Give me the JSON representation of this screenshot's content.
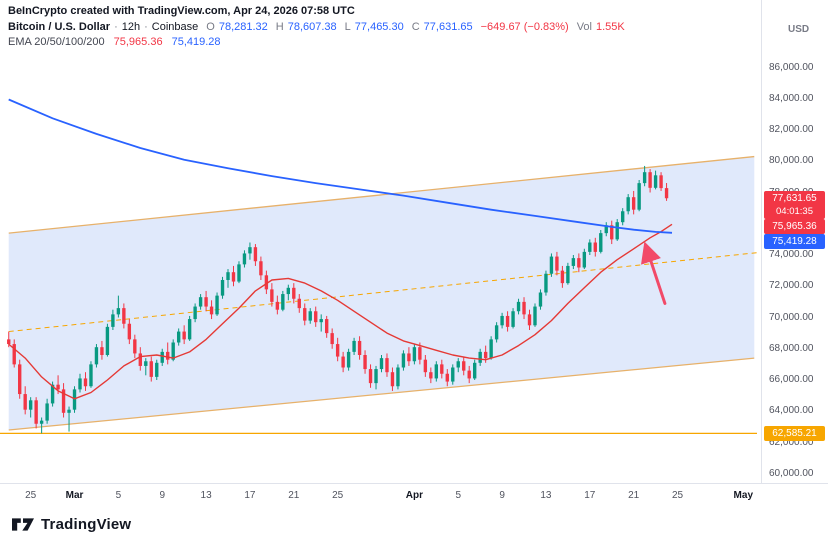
{
  "header": {
    "watermark": "BeInCrypto created with TradingView.com, Apr 24, 2026 07:58 UTC",
    "symbol": {
      "title": "Bitcoin / U.S. Dollar",
      "sep": "·",
      "interval": "12h",
      "exchange": "Coinbase",
      "o_label": "O",
      "o": "78,281.32",
      "h_label": "H",
      "h": "78,607.38",
      "l_label": "L",
      "l": "77,465.30",
      "c_label": "C",
      "c": "77,631.65",
      "change": "−649.67 (−0.83%)",
      "vol_label": "Vol",
      "vol": "1.55K"
    },
    "ema": {
      "label": "EMA 20/50/100/200",
      "value1": "75,965.36",
      "value2": "75,419.28"
    }
  },
  "axis": {
    "currency": "USD",
    "price_ticks": [
      {
        "v": 86000,
        "label": "86,000.00"
      },
      {
        "v": 84000,
        "label": "84,000.00"
      },
      {
        "v": 82000,
        "label": "82,000.00"
      },
      {
        "v": 80000,
        "label": "80,000.00"
      },
      {
        "v": 78000,
        "label": "78,000.00"
      },
      {
        "v": 76000,
        "label": "76,000.00"
      },
      {
        "v": 74000,
        "label": "74,000.00"
      },
      {
        "v": 72000,
        "label": "72,000.00"
      },
      {
        "v": 70000,
        "label": "70,000.00"
      },
      {
        "v": 68000,
        "label": "68,000.00"
      },
      {
        "v": 66000,
        "label": "66,000.00"
      },
      {
        "v": 64000,
        "label": "64,000.00"
      },
      {
        "v": 62000,
        "label": "62,000.00"
      },
      {
        "v": 60000,
        "label": "60,000.00"
      }
    ],
    "badges": [
      {
        "name": "last-price-countdown-badge",
        "label": "77,631.65",
        "sub": "04:01:35",
        "value": 77631.65,
        "bg": "#f23645"
      },
      {
        "name": "ema-fast-value-badge",
        "label": "75,965.36",
        "value": 75965.36,
        "bg": "#f23645"
      },
      {
        "name": "ema-slow-value-badge",
        "label": "75,419.28",
        "value": 75419.28,
        "bg": "#2962ff"
      },
      {
        "name": "horizontal-line-value-badge",
        "label": "62,585.21",
        "value": 62585.21,
        "bg": "#f7a600"
      }
    ],
    "time_labels": [
      {
        "label": "25",
        "slot": 4,
        "major": false
      },
      {
        "label": "Mar",
        "slot": 12,
        "major": true
      },
      {
        "label": "5",
        "slot": 20,
        "major": false
      },
      {
        "label": "9",
        "slot": 28,
        "major": false
      },
      {
        "label": "13",
        "slot": 36,
        "major": false
      },
      {
        "label": "17",
        "slot": 44,
        "major": false
      },
      {
        "label": "21",
        "slot": 52,
        "major": false
      },
      {
        "label": "25",
        "slot": 60,
        "major": false
      },
      {
        "label": "Apr",
        "slot": 74,
        "major": true
      },
      {
        "label": "5",
        "slot": 82,
        "major": false
      },
      {
        "label": "9",
        "slot": 90,
        "major": false
      },
      {
        "label": "13",
        "slot": 98,
        "major": false
      },
      {
        "label": "17",
        "slot": 106,
        "major": false
      },
      {
        "label": "21",
        "slot": 114,
        "major": false
      },
      {
        "label": "25",
        "slot": 122,
        "major": false
      },
      {
        "label": "May",
        "slot": 134,
        "major": true
      }
    ]
  },
  "footer": {
    "brand": "TradingView"
  },
  "chart_data": {
    "type": "candlestick",
    "title": "Bitcoin / U.S. Dollar, 12h, Coinbase",
    "interval": "12h",
    "price_range": [
      59600,
      86800
    ],
    "slots": 137,
    "legend": [
      "EMA 20/50/100/200"
    ],
    "last_bar": {
      "o": 78281.32,
      "h": 78607.38,
      "l": 77465.3,
      "c": 77631.65,
      "change": -649.67,
      "change_pct": -0.83,
      "volume": "1.55K"
    },
    "colors": {
      "up": "#089981",
      "down": "#f23645",
      "ema_fast": "#e53935",
      "ema_slow": "#2962ff",
      "channel_line": "#e7b16a",
      "channel_fill": "rgba(62,121,229,0.16)",
      "trend": "#f7a600",
      "hline": "#f7a600",
      "arrow": "#f24a68"
    },
    "candles": [
      [
        68600,
        69100,
        68100,
        68300
      ],
      [
        68300,
        68600,
        66800,
        67000
      ],
      [
        67000,
        67300,
        64800,
        65100
      ],
      [
        65100,
        65600,
        63800,
        64100
      ],
      [
        64100,
        64900,
        63600,
        64700
      ],
      [
        64700,
        64900,
        62900,
        63200
      ],
      [
        63200,
        63600,
        62585,
        63400
      ],
      [
        63400,
        64800,
        63200,
        64500
      ],
      [
        64500,
        65900,
        64300,
        65700
      ],
      [
        65700,
        66300,
        65100,
        65400
      ],
      [
        65400,
        65800,
        63600,
        63900
      ],
      [
        63900,
        64300,
        62700,
        64100
      ],
      [
        64100,
        65600,
        63900,
        65400
      ],
      [
        65400,
        66400,
        65200,
        66100
      ],
      [
        66100,
        66500,
        65300,
        65600
      ],
      [
        65600,
        67200,
        65500,
        67000
      ],
      [
        67000,
        68300,
        66800,
        68100
      ],
      [
        68100,
        68500,
        67300,
        67600
      ],
      [
        67600,
        69600,
        67500,
        69400
      ],
      [
        69400,
        70500,
        69200,
        70200
      ],
      [
        70200,
        71400,
        70000,
        70600
      ],
      [
        70600,
        70900,
        69300,
        69600
      ],
      [
        69600,
        69900,
        68300,
        68600
      ],
      [
        68600,
        68900,
        67400,
        67700
      ],
      [
        67700,
        68100,
        66600,
        66900
      ],
      [
        66900,
        67400,
        66300,
        67200
      ],
      [
        67200,
        67500,
        65900,
        66200
      ],
      [
        66200,
        67300,
        66000,
        67100
      ],
      [
        67100,
        68000,
        66900,
        67800
      ],
      [
        67800,
        68400,
        67000,
        67300
      ],
      [
        67300,
        68600,
        67200,
        68400
      ],
      [
        68400,
        69300,
        68200,
        69100
      ],
      [
        69100,
        69500,
        68300,
        68600
      ],
      [
        68600,
        70100,
        68500,
        69900
      ],
      [
        69900,
        70900,
        69700,
        70700
      ],
      [
        70700,
        71500,
        70500,
        71300
      ],
      [
        71300,
        71700,
        70400,
        70700
      ],
      [
        70700,
        71100,
        69900,
        70200
      ],
      [
        70200,
        71600,
        70100,
        71400
      ],
      [
        71400,
        72600,
        71200,
        72400
      ],
      [
        72400,
        73100,
        71900,
        72900
      ],
      [
        72900,
        73300,
        72000,
        72300
      ],
      [
        72300,
        73600,
        72200,
        73400
      ],
      [
        73400,
        74300,
        73200,
        74100
      ],
      [
        74100,
        74800,
        73700,
        74500
      ],
      [
        74500,
        74700,
        73300,
        73600
      ],
      [
        73600,
        73900,
        72400,
        72700
      ],
      [
        72700,
        73000,
        71500,
        71800
      ],
      [
        71800,
        72200,
        70700,
        71000
      ],
      [
        71000,
        71400,
        70200,
        70500
      ],
      [
        70500,
        71700,
        70400,
        71500
      ],
      [
        71500,
        72100,
        71100,
        71900
      ],
      [
        71900,
        72200,
        70900,
        71200
      ],
      [
        71200,
        71500,
        70300,
        70600
      ],
      [
        70600,
        70900,
        69500,
        69800
      ],
      [
        69800,
        70600,
        69600,
        70400
      ],
      [
        70400,
        70700,
        69400,
        69700
      ],
      [
        69700,
        70200,
        69100,
        69900
      ],
      [
        69900,
        70100,
        68700,
        69000
      ],
      [
        69000,
        69300,
        68000,
        68300
      ],
      [
        68300,
        68700,
        67200,
        67500
      ],
      [
        67500,
        67800,
        66500,
        66800
      ],
      [
        66800,
        68000,
        66600,
        67800
      ],
      [
        67800,
        68700,
        67600,
        68500
      ],
      [
        68500,
        68800,
        67300,
        67600
      ],
      [
        67600,
        67900,
        66400,
        66700
      ],
      [
        66700,
        67000,
        65500,
        65800
      ],
      [
        65800,
        66900,
        65400,
        66700
      ],
      [
        66700,
        67600,
        66500,
        67400
      ],
      [
        67400,
        67700,
        66200,
        66500
      ],
      [
        66500,
        66800,
        65300,
        65600
      ],
      [
        65600,
        67000,
        65400,
        66800
      ],
      [
        66800,
        67900,
        66600,
        67700
      ],
      [
        67700,
        68100,
        66900,
        67200
      ],
      [
        67200,
        68300,
        67000,
        68100
      ],
      [
        68100,
        68400,
        67000,
        67300
      ],
      [
        67300,
        67600,
        66200,
        66500
      ],
      [
        66500,
        66800,
        65800,
        66100
      ],
      [
        66100,
        67200,
        65900,
        67000
      ],
      [
        67000,
        67300,
        66100,
        66400
      ],
      [
        66400,
        66700,
        65600,
        65900
      ],
      [
        65900,
        67000,
        65700,
        66800
      ],
      [
        66800,
        67400,
        66500,
        67200
      ],
      [
        67200,
        67500,
        66300,
        66600
      ],
      [
        66600,
        66900,
        65800,
        66100
      ],
      [
        66100,
        67300,
        66000,
        67100
      ],
      [
        67100,
        68000,
        66900,
        67800
      ],
      [
        67800,
        68200,
        67100,
        67400
      ],
      [
        67400,
        68800,
        67300,
        68600
      ],
      [
        68600,
        69700,
        68400,
        69500
      ],
      [
        69500,
        70300,
        69300,
        70100
      ],
      [
        70100,
        70400,
        69100,
        69400
      ],
      [
        69400,
        70600,
        69300,
        70400
      ],
      [
        70400,
        71200,
        70200,
        71000
      ],
      [
        71000,
        71300,
        69900,
        70200
      ],
      [
        70200,
        70500,
        69200,
        69500
      ],
      [
        69500,
        70900,
        69400,
        70700
      ],
      [
        70700,
        71800,
        70500,
        71600
      ],
      [
        71600,
        73000,
        71400,
        72800
      ],
      [
        72800,
        74100,
        72600,
        73900
      ],
      [
        73900,
        74200,
        72700,
        73000
      ],
      [
        73000,
        73300,
        71900,
        72200
      ],
      [
        72200,
        73500,
        72100,
        73300
      ],
      [
        73300,
        74000,
        73100,
        73800
      ],
      [
        73800,
        74100,
        72900,
        73200
      ],
      [
        73200,
        74400,
        73100,
        74200
      ],
      [
        74200,
        75000,
        74000,
        74800
      ],
      [
        74800,
        75100,
        73900,
        74200
      ],
      [
        74200,
        75600,
        74100,
        75400
      ],
      [
        75400,
        76100,
        75200,
        75900
      ],
      [
        75900,
        76200,
        74700,
        75000
      ],
      [
        75000,
        76300,
        74900,
        76100
      ],
      [
        76100,
        77000,
        75900,
        76800
      ],
      [
        76800,
        77900,
        76600,
        77700
      ],
      [
        77700,
        78100,
        76600,
        76900
      ],
      [
        76900,
        78800,
        76800,
        78600
      ],
      [
        78600,
        79700,
        78400,
        79300
      ],
      [
        79300,
        79500,
        78000,
        78300
      ],
      [
        78300,
        79400,
        78200,
        79100
      ],
      [
        79100,
        79300,
        78100,
        78281
      ],
      [
        78281,
        78607,
        77465,
        77632
      ]
    ],
    "overlays": {
      "ema_fast": {
        "points": [
          [
            0,
            68300
          ],
          [
            3,
            67400
          ],
          [
            6,
            66200
          ],
          [
            9,
            65300
          ],
          [
            12,
            64800
          ],
          [
            15,
            65200
          ],
          [
            18,
            66000
          ],
          [
            21,
            66900
          ],
          [
            24,
            67500
          ],
          [
            27,
            67600
          ],
          [
            30,
            67400
          ],
          [
            33,
            67800
          ],
          [
            36,
            68600
          ],
          [
            39,
            69600
          ],
          [
            42,
            70600
          ],
          [
            45,
            71700
          ],
          [
            48,
            72400
          ],
          [
            51,
            72500
          ],
          [
            54,
            72200
          ],
          [
            57,
            71700
          ],
          [
            60,
            71100
          ],
          [
            63,
            70400
          ],
          [
            66,
            69700
          ],
          [
            69,
            69000
          ],
          [
            72,
            68500
          ],
          [
            75,
            68200
          ],
          [
            78,
            67900
          ],
          [
            81,
            67600
          ],
          [
            84,
            67400
          ],
          [
            87,
            67300
          ],
          [
            90,
            67600
          ],
          [
            93,
            68200
          ],
          [
            96,
            68900
          ],
          [
            99,
            69800
          ],
          [
            102,
            70900
          ],
          [
            105,
            71900
          ],
          [
            108,
            72900
          ],
          [
            111,
            73700
          ],
          [
            114,
            74400
          ],
          [
            117,
            75100
          ],
          [
            119,
            75500
          ],
          [
            121,
            75965
          ]
        ]
      },
      "ema_slow": {
        "points": [
          [
            0,
            83950
          ],
          [
            8,
            82750
          ],
          [
            16,
            81750
          ],
          [
            24,
            80850
          ],
          [
            32,
            80100
          ],
          [
            40,
            79550
          ],
          [
            48,
            79050
          ],
          [
            56,
            78600
          ],
          [
            64,
            78200
          ],
          [
            72,
            77800
          ],
          [
            80,
            77350
          ],
          [
            88,
            76900
          ],
          [
            96,
            76500
          ],
          [
            104,
            76100
          ],
          [
            110,
            75800
          ],
          [
            114,
            75620
          ],
          [
            118,
            75480
          ],
          [
            121,
            75419
          ]
        ]
      },
      "channel": {
        "lower": [
          [
            0,
            62800
          ],
          [
            136,
            67400
          ]
        ],
        "upper": [
          [
            0,
            75400
          ],
          [
            136,
            80300
          ]
        ]
      },
      "trendline": {
        "from": [
          0,
          69100
        ],
        "to": [
          136.5,
          74150
        ],
        "dashed": true
      },
      "hline": {
        "value": 62585.21
      },
      "arrow": {
        "from": [
          119.7,
          70900
        ],
        "to": [
          116.3,
          74500
        ]
      }
    }
  }
}
